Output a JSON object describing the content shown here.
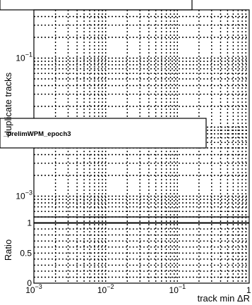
{
  "chart_data": {
    "type": "line",
    "panels": [
      {
        "name": "main",
        "ylabel": "duplicate tracks",
        "yscale": "log",
        "ylim": [
          0.0005,
          0.5
        ],
        "ticks": [
          {
            "base": "10",
            "exp": "−1",
            "value": 0.1
          },
          {
            "base": "10",
            "exp": "−3",
            "value": 0.001
          }
        ],
        "series": []
      },
      {
        "name": "ratio",
        "ylabel": "Ratio",
        "yscale": "linear",
        "ylim": [
          0,
          1.1
        ],
        "ticks": [
          {
            "label": "1",
            "value": 1
          },
          {
            "label": "0.5",
            "value": 0.5
          },
          {
            "label": "0",
            "value": 0
          }
        ],
        "reference_line": 1,
        "series": []
      }
    ],
    "xlabel": "track min ΔR",
    "xscale": "log",
    "xlim": [
      0.001,
      1
    ],
    "xticks": [
      {
        "base": "10",
        "exp": "−3",
        "value": 0.001
      },
      {
        "base": "10",
        "exp": "−2",
        "value": 0.01
      },
      {
        "base": "10",
        "exp": "−1",
        "value": 0.1
      },
      {
        "label": "1",
        "value": 1
      }
    ],
    "grid": true,
    "legend_text": "_prelimWPM_epoch3"
  }
}
